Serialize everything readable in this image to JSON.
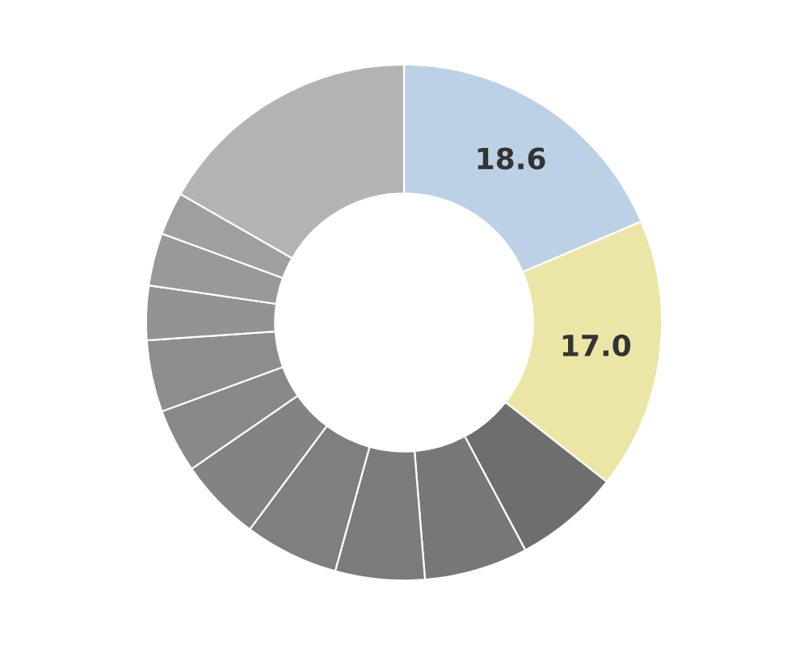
{
  "chart_data": {
    "type": "donut",
    "categories": [
      null,
      null,
      null,
      null,
      null,
      null,
      null,
      null,
      null,
      null,
      null,
      null,
      null
    ],
    "values": [
      18.6,
      17.0,
      6.6,
      6.5,
      5.6,
      5.9,
      5.2,
      4.0,
      4.5,
      3.4,
      3.3,
      2.7,
      16.7
    ],
    "colors": [
      "#bdd1e6",
      "#ece6a6",
      "#6e6e6e",
      "#777777",
      "#7b7b7b",
      "#7f7f7f",
      "#838383",
      "#888888",
      "#8d8d8d",
      "#939393",
      "#999999",
      "#9f9f9f",
      "#b3b3b3"
    ],
    "value_labels": [
      "18.6",
      "17.0",
      null,
      null,
      null,
      null,
      null,
      null,
      null,
      null,
      null,
      null,
      null
    ]
  }
}
